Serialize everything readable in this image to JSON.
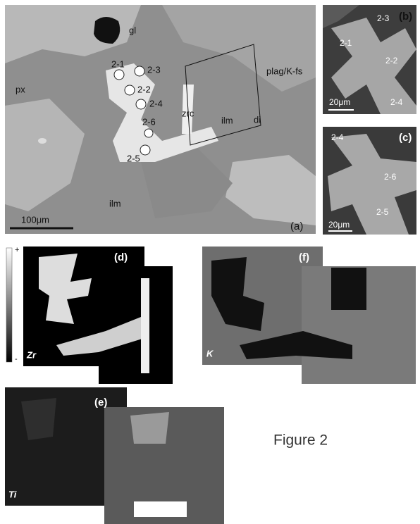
{
  "panel_a": {
    "panel": "(a)",
    "labels": [
      "gl",
      "px",
      "plag/K-fs",
      "zrc",
      "ilm",
      "di",
      "ilm"
    ],
    "spots": [
      "2-1",
      "2-3",
      "2-2",
      "2-4",
      "2-6",
      "2-5"
    ],
    "scale": "100μm"
  },
  "panel_b": {
    "panel": "(b)",
    "spots": [
      "2-3",
      "2-1",
      "2-2",
      "2-4"
    ],
    "scale": "20μm"
  },
  "panel_c": {
    "panel": "(c)",
    "spots": [
      "2-4",
      "2-6",
      "2-5"
    ],
    "scale": "20μm"
  },
  "intensity_scale": {
    "max": "+",
    "min": "-"
  },
  "panel_d": {
    "panel": "(d)",
    "element": "Zr"
  },
  "panel_f": {
    "panel": "(f)",
    "element": "K"
  },
  "panel_e": {
    "panel": "(e)",
    "element": "Ti"
  },
  "caption": "Figure 2"
}
